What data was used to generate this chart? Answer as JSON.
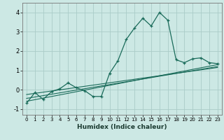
{
  "title": "",
  "xlabel": "Humidex (Indice chaleur)",
  "ylabel": "",
  "background_color": "#cce8e4",
  "grid_color": "#aaccc8",
  "line_color": "#1a6b5a",
  "xlim": [
    -0.5,
    23.5
  ],
  "ylim": [
    -1.3,
    4.5
  ],
  "xticks": [
    0,
    1,
    2,
    3,
    4,
    5,
    6,
    7,
    8,
    9,
    10,
    11,
    12,
    13,
    14,
    15,
    16,
    17,
    18,
    19,
    20,
    21,
    22,
    23
  ],
  "yticks": [
    -1,
    0,
    1,
    2,
    3,
    4
  ],
  "main_x": [
    0,
    1,
    2,
    3,
    4,
    5,
    6,
    7,
    8,
    9,
    10,
    11,
    12,
    13,
    14,
    15,
    16,
    17,
    18,
    19,
    20,
    21,
    22,
    23
  ],
  "main_y": [
    -0.7,
    -0.15,
    -0.5,
    -0.1,
    0.05,
    0.35,
    0.1,
    -0.05,
    -0.35,
    -0.35,
    0.85,
    1.5,
    2.6,
    3.2,
    3.7,
    3.3,
    4.0,
    3.6,
    1.55,
    1.4,
    1.6,
    1.65,
    1.4,
    1.35
  ],
  "line1_x": [
    0,
    23
  ],
  "line1_y": [
    -0.6,
    1.3
  ],
  "line2_x": [
    0,
    23
  ],
  "line2_y": [
    -0.45,
    1.2
  ],
  "line3_x": [
    0,
    23
  ],
  "line3_y": [
    -0.25,
    1.15
  ]
}
